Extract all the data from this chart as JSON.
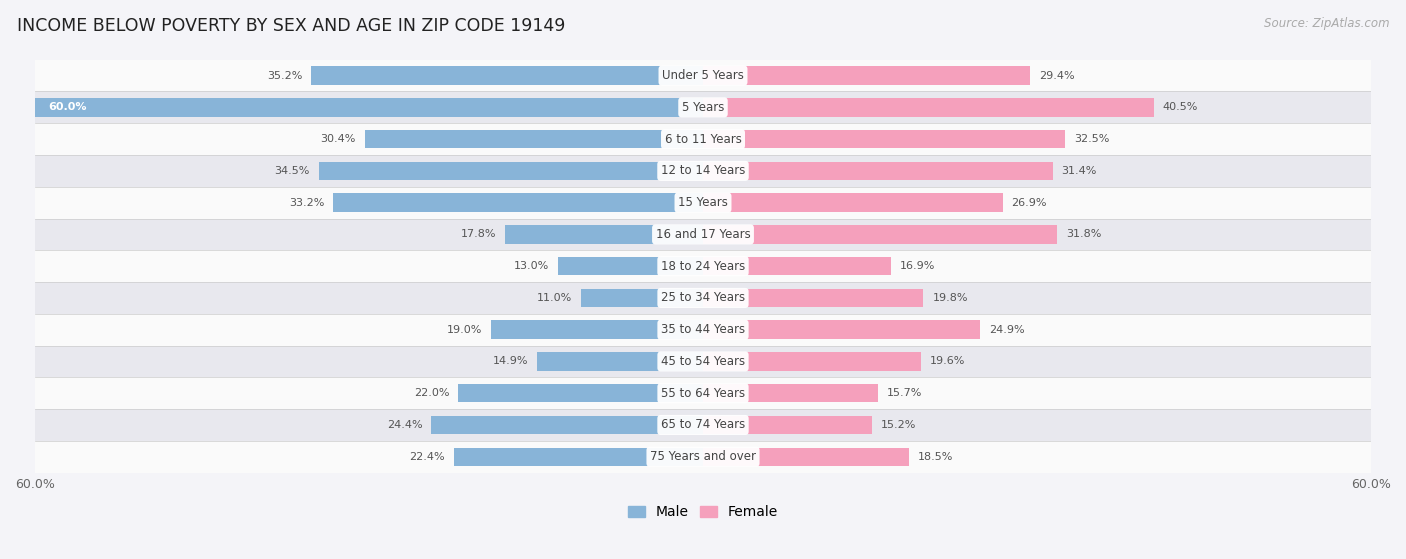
{
  "title": "INCOME BELOW POVERTY BY SEX AND AGE IN ZIP CODE 19149",
  "source": "Source: ZipAtlas.com",
  "categories": [
    "Under 5 Years",
    "5 Years",
    "6 to 11 Years",
    "12 to 14 Years",
    "15 Years",
    "16 and 17 Years",
    "18 to 24 Years",
    "25 to 34 Years",
    "35 to 44 Years",
    "45 to 54 Years",
    "55 to 64 Years",
    "65 to 74 Years",
    "75 Years and over"
  ],
  "male_values": [
    35.2,
    60.0,
    30.4,
    34.5,
    33.2,
    17.8,
    13.0,
    11.0,
    19.0,
    14.9,
    22.0,
    24.4,
    22.4
  ],
  "female_values": [
    29.4,
    40.5,
    32.5,
    31.4,
    26.9,
    31.8,
    16.9,
    19.8,
    24.9,
    19.6,
    15.7,
    15.2,
    18.5
  ],
  "male_color": "#88b4d8",
  "female_color": "#f5a0bc",
  "axis_limit": 60.0,
  "background_color": "#f4f4f8",
  "row_light_color": "#fafafa",
  "row_dark_color": "#e8e8ee",
  "bar_height": 0.58,
  "label_fontsize": 8.5,
  "value_fontsize": 8.0,
  "title_fontsize": 12.5
}
